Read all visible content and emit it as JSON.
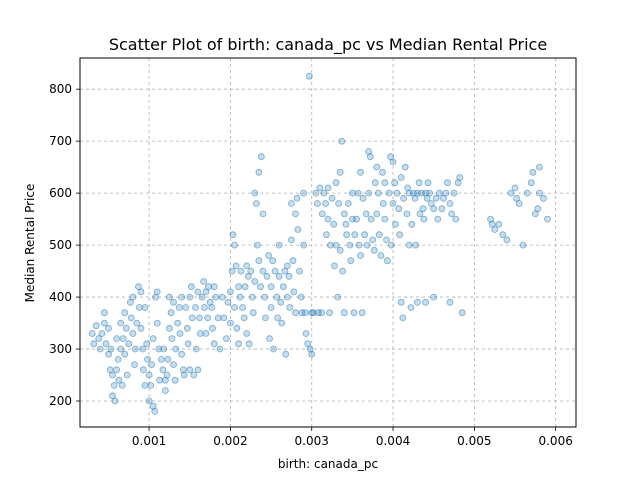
{
  "chart_data": {
    "type": "scatter",
    "title": "Scatter Plot of birth: canada_pc vs Median Rental Price",
    "xlabel": "birth: canada_pc",
    "ylabel": "Median Rental Price",
    "xlim": [
      0.00015,
      0.00625
    ],
    "ylim": [
      150,
      860
    ],
    "xticks": [
      0.001,
      0.002,
      0.003,
      0.004,
      0.005,
      0.006
    ],
    "xtick_labels": [
      "0.001",
      "0.002",
      "0.003",
      "0.004",
      "0.005",
      "0.006"
    ],
    "yticks": [
      200,
      300,
      400,
      500,
      600,
      700,
      800
    ],
    "ytick_labels": [
      "200",
      "300",
      "400",
      "500",
      "600",
      "700",
      "800"
    ],
    "grid": true,
    "marker_color": "#1f77b4",
    "marker_alpha": 0.25,
    "points": [
      [
        0.0003,
        330
      ],
      [
        0.00032,
        310
      ],
      [
        0.00035,
        345
      ],
      [
        0.00038,
        320
      ],
      [
        0.0004,
        300
      ],
      [
        0.00042,
        330
      ],
      [
        0.00045,
        370
      ],
      [
        0.00045,
        350
      ],
      [
        0.00047,
        310
      ],
      [
        0.0005,
        340
      ],
      [
        0.0005,
        290
      ],
      [
        0.00052,
        260
      ],
      [
        0.00053,
        300
      ],
      [
        0.00055,
        250
      ],
      [
        0.00055,
        210
      ],
      [
        0.00057,
        230
      ],
      [
        0.00058,
        200
      ],
      [
        0.0006,
        260
      ],
      [
        0.0006,
        320
      ],
      [
        0.00062,
        280
      ],
      [
        0.00063,
        240
      ],
      [
        0.00065,
        350
      ],
      [
        0.00065,
        300
      ],
      [
        0.00067,
        230
      ],
      [
        0.00068,
        320
      ],
      [
        0.0007,
        370
      ],
      [
        0.0007,
        290
      ],
      [
        0.00072,
        340
      ],
      [
        0.00073,
        250
      ],
      [
        0.00075,
        310
      ],
      [
        0.00077,
        390
      ],
      [
        0.00078,
        360
      ],
      [
        0.0008,
        400
      ],
      [
        0.0008,
        330
      ],
      [
        0.00082,
        270
      ],
      [
        0.00083,
        300
      ],
      [
        0.00085,
        350
      ],
      [
        0.00087,
        420
      ],
      [
        0.00088,
        380
      ],
      [
        0.0009,
        410
      ],
      [
        0.0009,
        340
      ],
      [
        0.00092,
        300
      ],
      [
        0.00093,
        260
      ],
      [
        0.00095,
        230
      ],
      [
        0.00095,
        380
      ],
      [
        0.00097,
        310
      ],
      [
        0.00098,
        280
      ],
      [
        0.001,
        250
      ],
      [
        0.001,
        200
      ],
      [
        0.00102,
        230
      ],
      [
        0.00103,
        270
      ],
      [
        0.00105,
        190
      ],
      [
        0.00105,
        320
      ],
      [
        0.00107,
        180
      ],
      [
        0.00108,
        400
      ],
      [
        0.0011,
        350
      ],
      [
        0.0011,
        410
      ],
      [
        0.00112,
        300
      ],
      [
        0.00113,
        240
      ],
      [
        0.00115,
        280
      ],
      [
        0.00117,
        260
      ],
      [
        0.00118,
        300
      ],
      [
        0.0012,
        240
      ],
      [
        0.0012,
        220
      ],
      [
        0.00122,
        250
      ],
      [
        0.00123,
        280
      ],
      [
        0.00125,
        400
      ],
      [
        0.00125,
        340
      ],
      [
        0.00127,
        370
      ],
      [
        0.00128,
        320
      ],
      [
        0.0013,
        390
      ],
      [
        0.0013,
        270
      ],
      [
        0.00132,
        240
      ],
      [
        0.00133,
        300
      ],
      [
        0.00135,
        350
      ],
      [
        0.00137,
        380
      ],
      [
        0.00138,
        330
      ],
      [
        0.0014,
        400
      ],
      [
        0.0014,
        290
      ],
      [
        0.00142,
        260
      ],
      [
        0.00143,
        250
      ],
      [
        0.00145,
        380
      ],
      [
        0.00147,
        340
      ],
      [
        0.00148,
        310
      ],
      [
        0.0015,
        400
      ],
      [
        0.0015,
        260
      ],
      [
        0.00152,
        420
      ],
      [
        0.00153,
        360
      ],
      [
        0.00155,
        250
      ],
      [
        0.00157,
        380
      ],
      [
        0.00158,
        300
      ],
      [
        0.0016,
        410
      ],
      [
        0.0016,
        260
      ],
      [
        0.00162,
        360
      ],
      [
        0.00163,
        330
      ],
      [
        0.00165,
        400
      ],
      [
        0.00167,
        430
      ],
      [
        0.00168,
        380
      ],
      [
        0.0017,
        410
      ],
      [
        0.0017,
        330
      ],
      [
        0.00172,
        360
      ],
      [
        0.00173,
        420
      ],
      [
        0.00175,
        390
      ],
      [
        0.00177,
        380
      ],
      [
        0.00178,
        340
      ],
      [
        0.0018,
        420
      ],
      [
        0.0018,
        310
      ],
      [
        0.00182,
        400
      ],
      [
        0.00185,
        360
      ],
      [
        0.00187,
        300
      ],
      [
        0.0019,
        400
      ],
      [
        0.00192,
        360
      ],
      [
        0.00195,
        320
      ],
      [
        0.00197,
        390
      ],
      [
        0.002,
        350
      ],
      [
        0.002,
        410
      ],
      [
        0.00202,
        450
      ],
      [
        0.00203,
        520
      ],
      [
        0.00205,
        500
      ],
      [
        0.00205,
        380
      ],
      [
        0.00207,
        460
      ],
      [
        0.00208,
        340
      ],
      [
        0.0021,
        420
      ],
      [
        0.0021,
        310
      ],
      [
        0.00212,
        400
      ],
      [
        0.00213,
        450
      ],
      [
        0.00215,
        380
      ],
      [
        0.00217,
        360
      ],
      [
        0.00218,
        420
      ],
      [
        0.0022,
        460
      ],
      [
        0.0022,
        330
      ],
      [
        0.00222,
        440
      ],
      [
        0.00223,
        310
      ],
      [
        0.00225,
        450
      ],
      [
        0.00227,
        400
      ],
      [
        0.00228,
        370
      ],
      [
        0.0023,
        430
      ],
      [
        0.0023,
        600
      ],
      [
        0.00232,
        580
      ],
      [
        0.00233,
        500
      ],
      [
        0.00235,
        640
      ],
      [
        0.00235,
        470
      ],
      [
        0.00237,
        420
      ],
      [
        0.00238,
        670
      ],
      [
        0.0024,
        560
      ],
      [
        0.0024,
        450
      ],
      [
        0.00242,
        400
      ],
      [
        0.00243,
        360
      ],
      [
        0.00245,
        440
      ],
      [
        0.00247,
        480
      ],
      [
        0.00248,
        320
      ],
      [
        0.0025,
        420
      ],
      [
        0.0025,
        380
      ],
      [
        0.00252,
        470
      ],
      [
        0.00253,
        300
      ],
      [
        0.00255,
        450
      ],
      [
        0.00257,
        400
      ],
      [
        0.00258,
        360
      ],
      [
        0.0026,
        500
      ],
      [
        0.0026,
        440
      ],
      [
        0.00262,
        390
      ],
      [
        0.00263,
        350
      ],
      [
        0.00265,
        420
      ],
      [
        0.00267,
        450
      ],
      [
        0.00268,
        290
      ],
      [
        0.0027,
        460
      ],
      [
        0.0027,
        400
      ],
      [
        0.00272,
        440
      ],
      [
        0.00273,
        380
      ],
      [
        0.00275,
        580
      ],
      [
        0.00275,
        510
      ],
      [
        0.00277,
        470
      ],
      [
        0.00278,
        410
      ],
      [
        0.0028,
        370
      ],
      [
        0.0028,
        560
      ],
      [
        0.00282,
        590
      ],
      [
        0.00283,
        530
      ],
      [
        0.00285,
        450
      ],
      [
        0.00287,
        400
      ],
      [
        0.00288,
        370
      ],
      [
        0.0029,
        600
      ],
      [
        0.0029,
        500
      ],
      [
        0.00292,
        370
      ],
      [
        0.00293,
        330
      ],
      [
        0.00295,
        310
      ],
      [
        0.00297,
        825
      ],
      [
        0.00298,
        300
      ],
      [
        0.003,
        290
      ],
      [
        0.003,
        370
      ],
      [
        0.00302,
        370
      ],
      [
        0.00305,
        600
      ],
      [
        0.00307,
        580
      ],
      [
        0.00308,
        370
      ],
      [
        0.0031,
        610
      ],
      [
        0.00312,
        370
      ],
      [
        0.00313,
        560
      ],
      [
        0.00315,
        600
      ],
      [
        0.00317,
        580
      ],
      [
        0.00318,
        520
      ],
      [
        0.0032,
        550
      ],
      [
        0.0032,
        610
      ],
      [
        0.00322,
        370
      ],
      [
        0.00323,
        500
      ],
      [
        0.00325,
        590
      ],
      [
        0.00327,
        540
      ],
      [
        0.00328,
        460
      ],
      [
        0.0033,
        500
      ],
      [
        0.0033,
        620
      ],
      [
        0.00332,
        400
      ],
      [
        0.00333,
        580
      ],
      [
        0.00335,
        640
      ],
      [
        0.00335,
        490
      ],
      [
        0.00337,
        700
      ],
      [
        0.00338,
        450
      ],
      [
        0.0034,
        560
      ],
      [
        0.0034,
        370
      ],
      [
        0.00342,
        540
      ],
      [
        0.00343,
        520
      ],
      [
        0.00345,
        580
      ],
      [
        0.00347,
        500
      ],
      [
        0.00348,
        470
      ],
      [
        0.0035,
        550
      ],
      [
        0.0035,
        600
      ],
      [
        0.00352,
        370
      ],
      [
        0.00353,
        520
      ],
      [
        0.00355,
        550
      ],
      [
        0.00357,
        600
      ],
      [
        0.00358,
        500
      ],
      [
        0.0036,
        640
      ],
      [
        0.0036,
        480
      ],
      [
        0.00362,
        370
      ],
      [
        0.00363,
        590
      ],
      [
        0.00365,
        520
      ],
      [
        0.00367,
        560
      ],
      [
        0.00368,
        500
      ],
      [
        0.0037,
        600
      ],
      [
        0.0037,
        680
      ],
      [
        0.00372,
        670
      ],
      [
        0.00373,
        550
      ],
      [
        0.00375,
        510
      ],
      [
        0.00377,
        490
      ],
      [
        0.00378,
        620
      ],
      [
        0.0038,
        560
      ],
      [
        0.0038,
        650
      ],
      [
        0.00382,
        600
      ],
      [
        0.00383,
        520
      ],
      [
        0.00385,
        480
      ],
      [
        0.00387,
        640
      ],
      [
        0.00388,
        580
      ],
      [
        0.0039,
        550
      ],
      [
        0.0039,
        620
      ],
      [
        0.00392,
        510
      ],
      [
        0.00393,
        470
      ],
      [
        0.00395,
        600
      ],
      [
        0.00397,
        670
      ],
      [
        0.00398,
        500
      ],
      [
        0.004,
        660
      ],
      [
        0.004,
        580
      ],
      [
        0.00402,
        620
      ],
      [
        0.00403,
        540
      ],
      [
        0.00405,
        600
      ],
      [
        0.00407,
        570
      ],
      [
        0.00408,
        520
      ],
      [
        0.0041,
        630
      ],
      [
        0.0041,
        390
      ],
      [
        0.00412,
        360
      ],
      [
        0.00413,
        590
      ],
      [
        0.00415,
        650
      ],
      [
        0.00417,
        560
      ],
      [
        0.00418,
        610
      ],
      [
        0.0042,
        600
      ],
      [
        0.0042,
        500
      ],
      [
        0.00422,
        380
      ],
      [
        0.00423,
        540
      ],
      [
        0.00425,
        600
      ],
      [
        0.00427,
        590
      ],
      [
        0.00428,
        500
      ],
      [
        0.0043,
        600
      ],
      [
        0.0043,
        390
      ],
      [
        0.00432,
        620
      ],
      [
        0.00433,
        560
      ],
      [
        0.00435,
        600
      ],
      [
        0.00437,
        570
      ],
      [
        0.00438,
        550
      ],
      [
        0.0044,
        600
      ],
      [
        0.0044,
        390
      ],
      [
        0.00442,
        590
      ],
      [
        0.00443,
        620
      ],
      [
        0.00445,
        600
      ],
      [
        0.00447,
        580
      ],
      [
        0.0045,
        570
      ],
      [
        0.0045,
        400
      ],
      [
        0.00453,
        590
      ],
      [
        0.00455,
        550
      ],
      [
        0.00457,
        600
      ],
      [
        0.0046,
        570
      ],
      [
        0.00462,
        590
      ],
      [
        0.00465,
        600
      ],
      [
        0.00467,
        620
      ],
      [
        0.0047,
        580
      ],
      [
        0.0047,
        390
      ],
      [
        0.00472,
        560
      ],
      [
        0.00475,
        600
      ],
      [
        0.00477,
        550
      ],
      [
        0.0048,
        620
      ],
      [
        0.00482,
        630
      ],
      [
        0.00485,
        370
      ],
      [
        0.0052,
        550
      ],
      [
        0.00522,
        540
      ],
      [
        0.00525,
        530
      ],
      [
        0.0053,
        540
      ],
      [
        0.00535,
        520
      ],
      [
        0.0054,
        510
      ],
      [
        0.00545,
        600
      ],
      [
        0.0055,
        610
      ],
      [
        0.00552,
        590
      ],
      [
        0.00555,
        580
      ],
      [
        0.0056,
        500
      ],
      [
        0.00565,
        600
      ],
      [
        0.0057,
        620
      ],
      [
        0.00572,
        640
      ],
      [
        0.00575,
        560
      ],
      [
        0.00578,
        570
      ],
      [
        0.0058,
        650
      ],
      [
        0.0058,
        600
      ],
      [
        0.00585,
        590
      ],
      [
        0.0059,
        550
      ]
    ]
  }
}
